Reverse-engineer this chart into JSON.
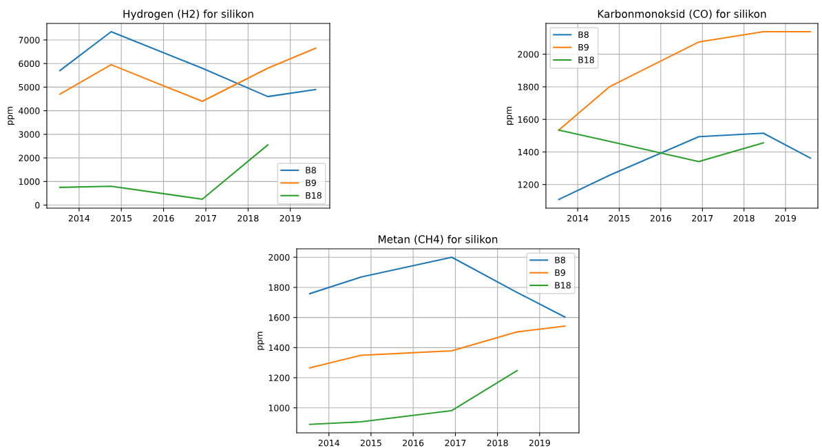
{
  "chart_data": [
    {
      "type": "line",
      "title": "Hydrogen (H2) for silikon",
      "ylabel": "ppm",
      "x": [
        "2013-07-19",
        "2014-10-05",
        "2016-12-01",
        "2018-06-20",
        "2019-08-08"
      ],
      "series": [
        {
          "name": "B8",
          "color": "#1f77b4",
          "values": [
            5700,
            7350,
            5800,
            4600,
            4900
          ]
        },
        {
          "name": "B9",
          "color": "#ff7f0e",
          "values": [
            4700,
            5950,
            4400,
            5800,
            6650
          ]
        },
        {
          "name": "B18",
          "color": "#2ca02c",
          "values": [
            750,
            800,
            250,
            2550,
            null
          ]
        }
      ],
      "xlim": [
        "2013-03-28",
        "2019-12-08"
      ],
      "xticks": [
        {
          "value": "2014-01-01",
          "label": "2014"
        },
        {
          "value": "2015-01-01",
          "label": "2015"
        },
        {
          "value": "2016-01-01",
          "label": "2016"
        },
        {
          "value": "2017-01-01",
          "label": "2017"
        },
        {
          "value": "2018-01-01",
          "label": "2018"
        },
        {
          "value": "2019-01-01",
          "label": "2019"
        }
      ],
      "ylim": [
        -130,
        7700
      ],
      "yticks": [
        0,
        1000,
        2000,
        3000,
        4000,
        5000,
        6000,
        7000
      ],
      "grid": true,
      "legend": "bottom right"
    },
    {
      "type": "line",
      "title": "Karbonmonoksid (CO) for silikon",
      "ylabel": "ppm",
      "x": [
        "2013-07-19",
        "2014-10-05",
        "2016-12-01",
        "2018-06-20",
        "2019-08-08"
      ],
      "series": [
        {
          "name": "B8",
          "color": "#1f77b4",
          "values": [
            1108,
            1256,
            1494,
            1515,
            1362
          ]
        },
        {
          "name": "B9",
          "color": "#ff7f0e",
          "values": [
            1534,
            1799,
            2075,
            2138,
            2138
          ]
        },
        {
          "name": "B18",
          "color": "#2ca02c",
          "values": [
            1534,
            1465,
            1341,
            1456,
            null
          ]
        }
      ],
      "xlim": [
        "2013-03-28",
        "2019-10-12"
      ],
      "xticks": [
        {
          "value": "2014-01-01",
          "label": "2014"
        },
        {
          "value": "2015-01-01",
          "label": "2015"
        },
        {
          "value": "2016-01-01",
          "label": "2016"
        },
        {
          "value": "2017-01-01",
          "label": "2017"
        },
        {
          "value": "2018-01-01",
          "label": "2018"
        },
        {
          "value": "2019-01-01",
          "label": "2019"
        }
      ],
      "ylim": [
        1055,
        2189
      ],
      "yticks": [
        1200,
        1400,
        1600,
        1800,
        2000
      ],
      "grid": true,
      "legend": "top left"
    },
    {
      "type": "line",
      "title": "Metan (CH4) for silikon",
      "ylabel": "ppm",
      "x": [
        "2013-07-19",
        "2014-10-05",
        "2016-12-01",
        "2018-06-20",
        "2019-08-08"
      ],
      "series": [
        {
          "name": "B8",
          "color": "#1f77b4",
          "values": [
            1758,
            1868,
            2000,
            1766,
            1603
          ]
        },
        {
          "name": "B9",
          "color": "#ff7f0e",
          "values": [
            1265,
            1349,
            1379,
            1504,
            1543
          ]
        },
        {
          "name": "B18",
          "color": "#2ca02c",
          "values": [
            890,
            907,
            982,
            1247,
            null
          ]
        }
      ],
      "xlim": [
        "2013-03-28",
        "2019-12-08"
      ],
      "xticks": [
        {
          "value": "2014-01-01",
          "label": "2014"
        },
        {
          "value": "2015-01-01",
          "label": "2015"
        },
        {
          "value": "2016-01-01",
          "label": "2016"
        },
        {
          "value": "2017-01-01",
          "label": "2017"
        },
        {
          "value": "2018-01-01",
          "label": "2018"
        },
        {
          "value": "2019-01-01",
          "label": "2019"
        }
      ],
      "ylim": [
        834,
        2056
      ],
      "yticks": [
        1000,
        1200,
        1400,
        1600,
        1800,
        2000
      ],
      "grid": true,
      "legend": "top right"
    }
  ]
}
